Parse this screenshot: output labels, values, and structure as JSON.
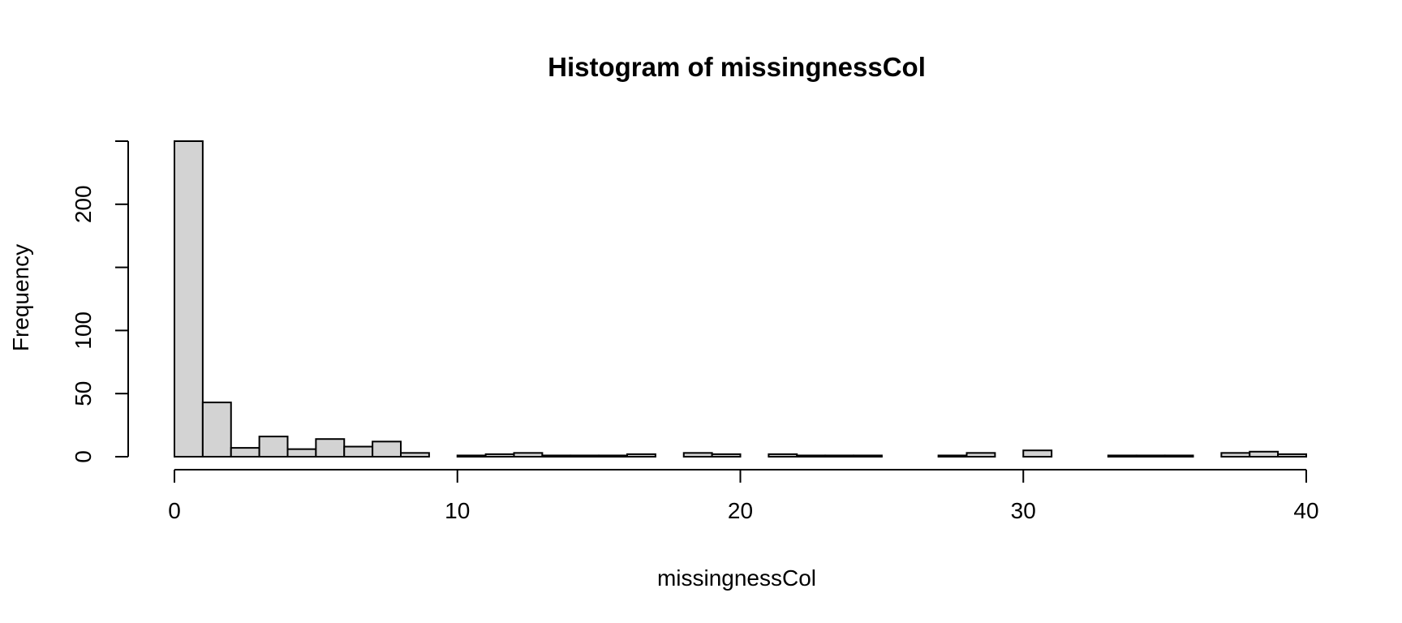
{
  "chart_data": {
    "type": "bar",
    "title": "Histogram of missingnessCol",
    "xlabel": "missingnessCol",
    "ylabel": "Frequency",
    "bin_width": 1,
    "xlim": [
      0,
      40
    ],
    "ylim": [
      0,
      250
    ],
    "x_ticks": [
      0,
      10,
      20,
      30,
      40
    ],
    "y_ticks": [
      0,
      50,
      100,
      200
    ],
    "y_tick_marks": [
      0,
      50,
      100,
      150,
      200,
      250
    ],
    "bin_edges_start": [
      0,
      1,
      2,
      3,
      4,
      5,
      6,
      7,
      8,
      9,
      10,
      11,
      12,
      13,
      14,
      15,
      16,
      17,
      18,
      19,
      20,
      21,
      22,
      23,
      24,
      25,
      26,
      27,
      28,
      29,
      30,
      31,
      32,
      33,
      34,
      35,
      36,
      37,
      38,
      39
    ],
    "values": [
      250,
      43,
      7,
      16,
      6,
      14,
      8,
      12,
      3,
      0,
      1,
      2,
      3,
      1,
      1,
      1,
      2,
      0,
      3,
      2,
      0,
      2,
      1,
      1,
      1,
      0,
      0,
      1,
      3,
      0,
      5,
      0,
      0,
      1,
      1,
      1,
      0,
      3,
      4,
      2
    ],
    "bar_color": "#d3d3d3",
    "edge_color": "#000000",
    "grid": false
  }
}
